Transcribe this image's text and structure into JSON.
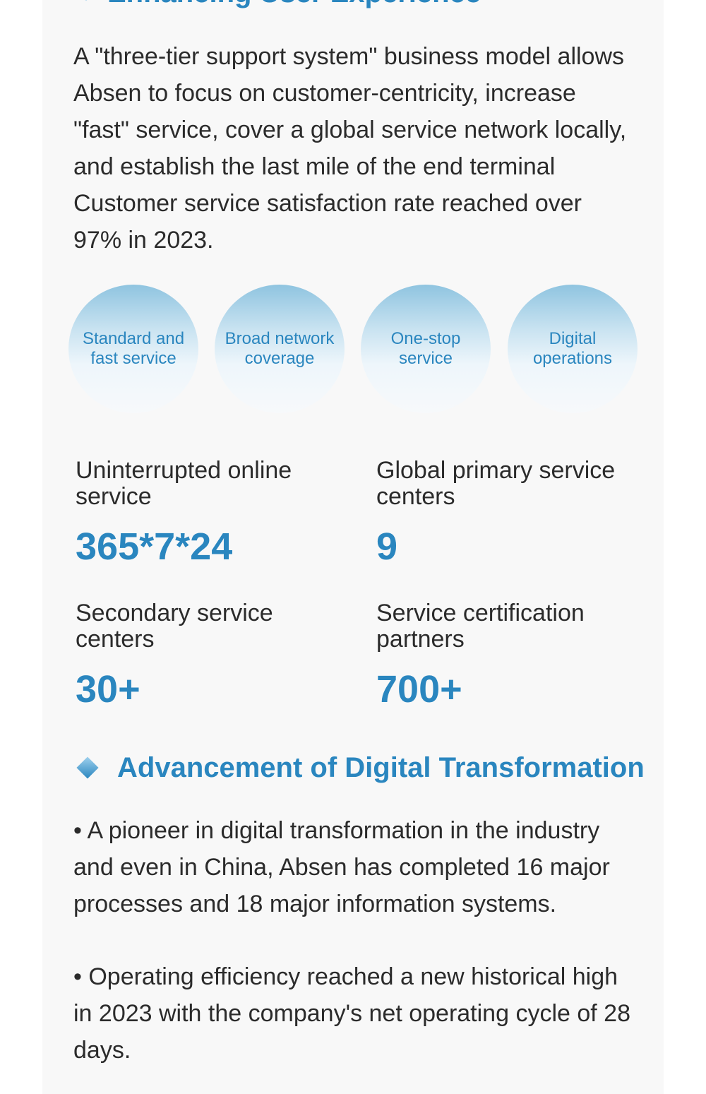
{
  "top_section": {
    "title": "Enhancing User Experience",
    "intro": "A \"three-tier support system\" business model allows Absen to focus on customer-centricity, in­crease \"fast\" service, cover a global service net­work locally, and establish the last mile of the end terminal Customer service satisfaction rate reached over 97% in 2023."
  },
  "circles": [
    {
      "label": "Standard and fast service"
    },
    {
      "label": "Broad network coverage"
    },
    {
      "label": "One-stop service"
    },
    {
      "label": "Digital operations"
    }
  ],
  "stats": [
    {
      "label": "Uninterrupted online service",
      "value": "365*7*24"
    },
    {
      "label": "Global primary service centers",
      "value": "9"
    },
    {
      "label": "Secondary service centers",
      "value": "30+"
    },
    {
      "label": "Service certification partners",
      "value": "700+"
    }
  ],
  "digital_section": {
    "title": "Advancement of Digital Transformation",
    "bullets": [
      "• A pioneer in digital transformation in the industry and even in China, Absen has completed 16 major processes and 18 major information systems.",
      "• Operating efficiency reached a new historical high in 2023 with the company's net operating cycle of 28 days."
    ]
  }
}
